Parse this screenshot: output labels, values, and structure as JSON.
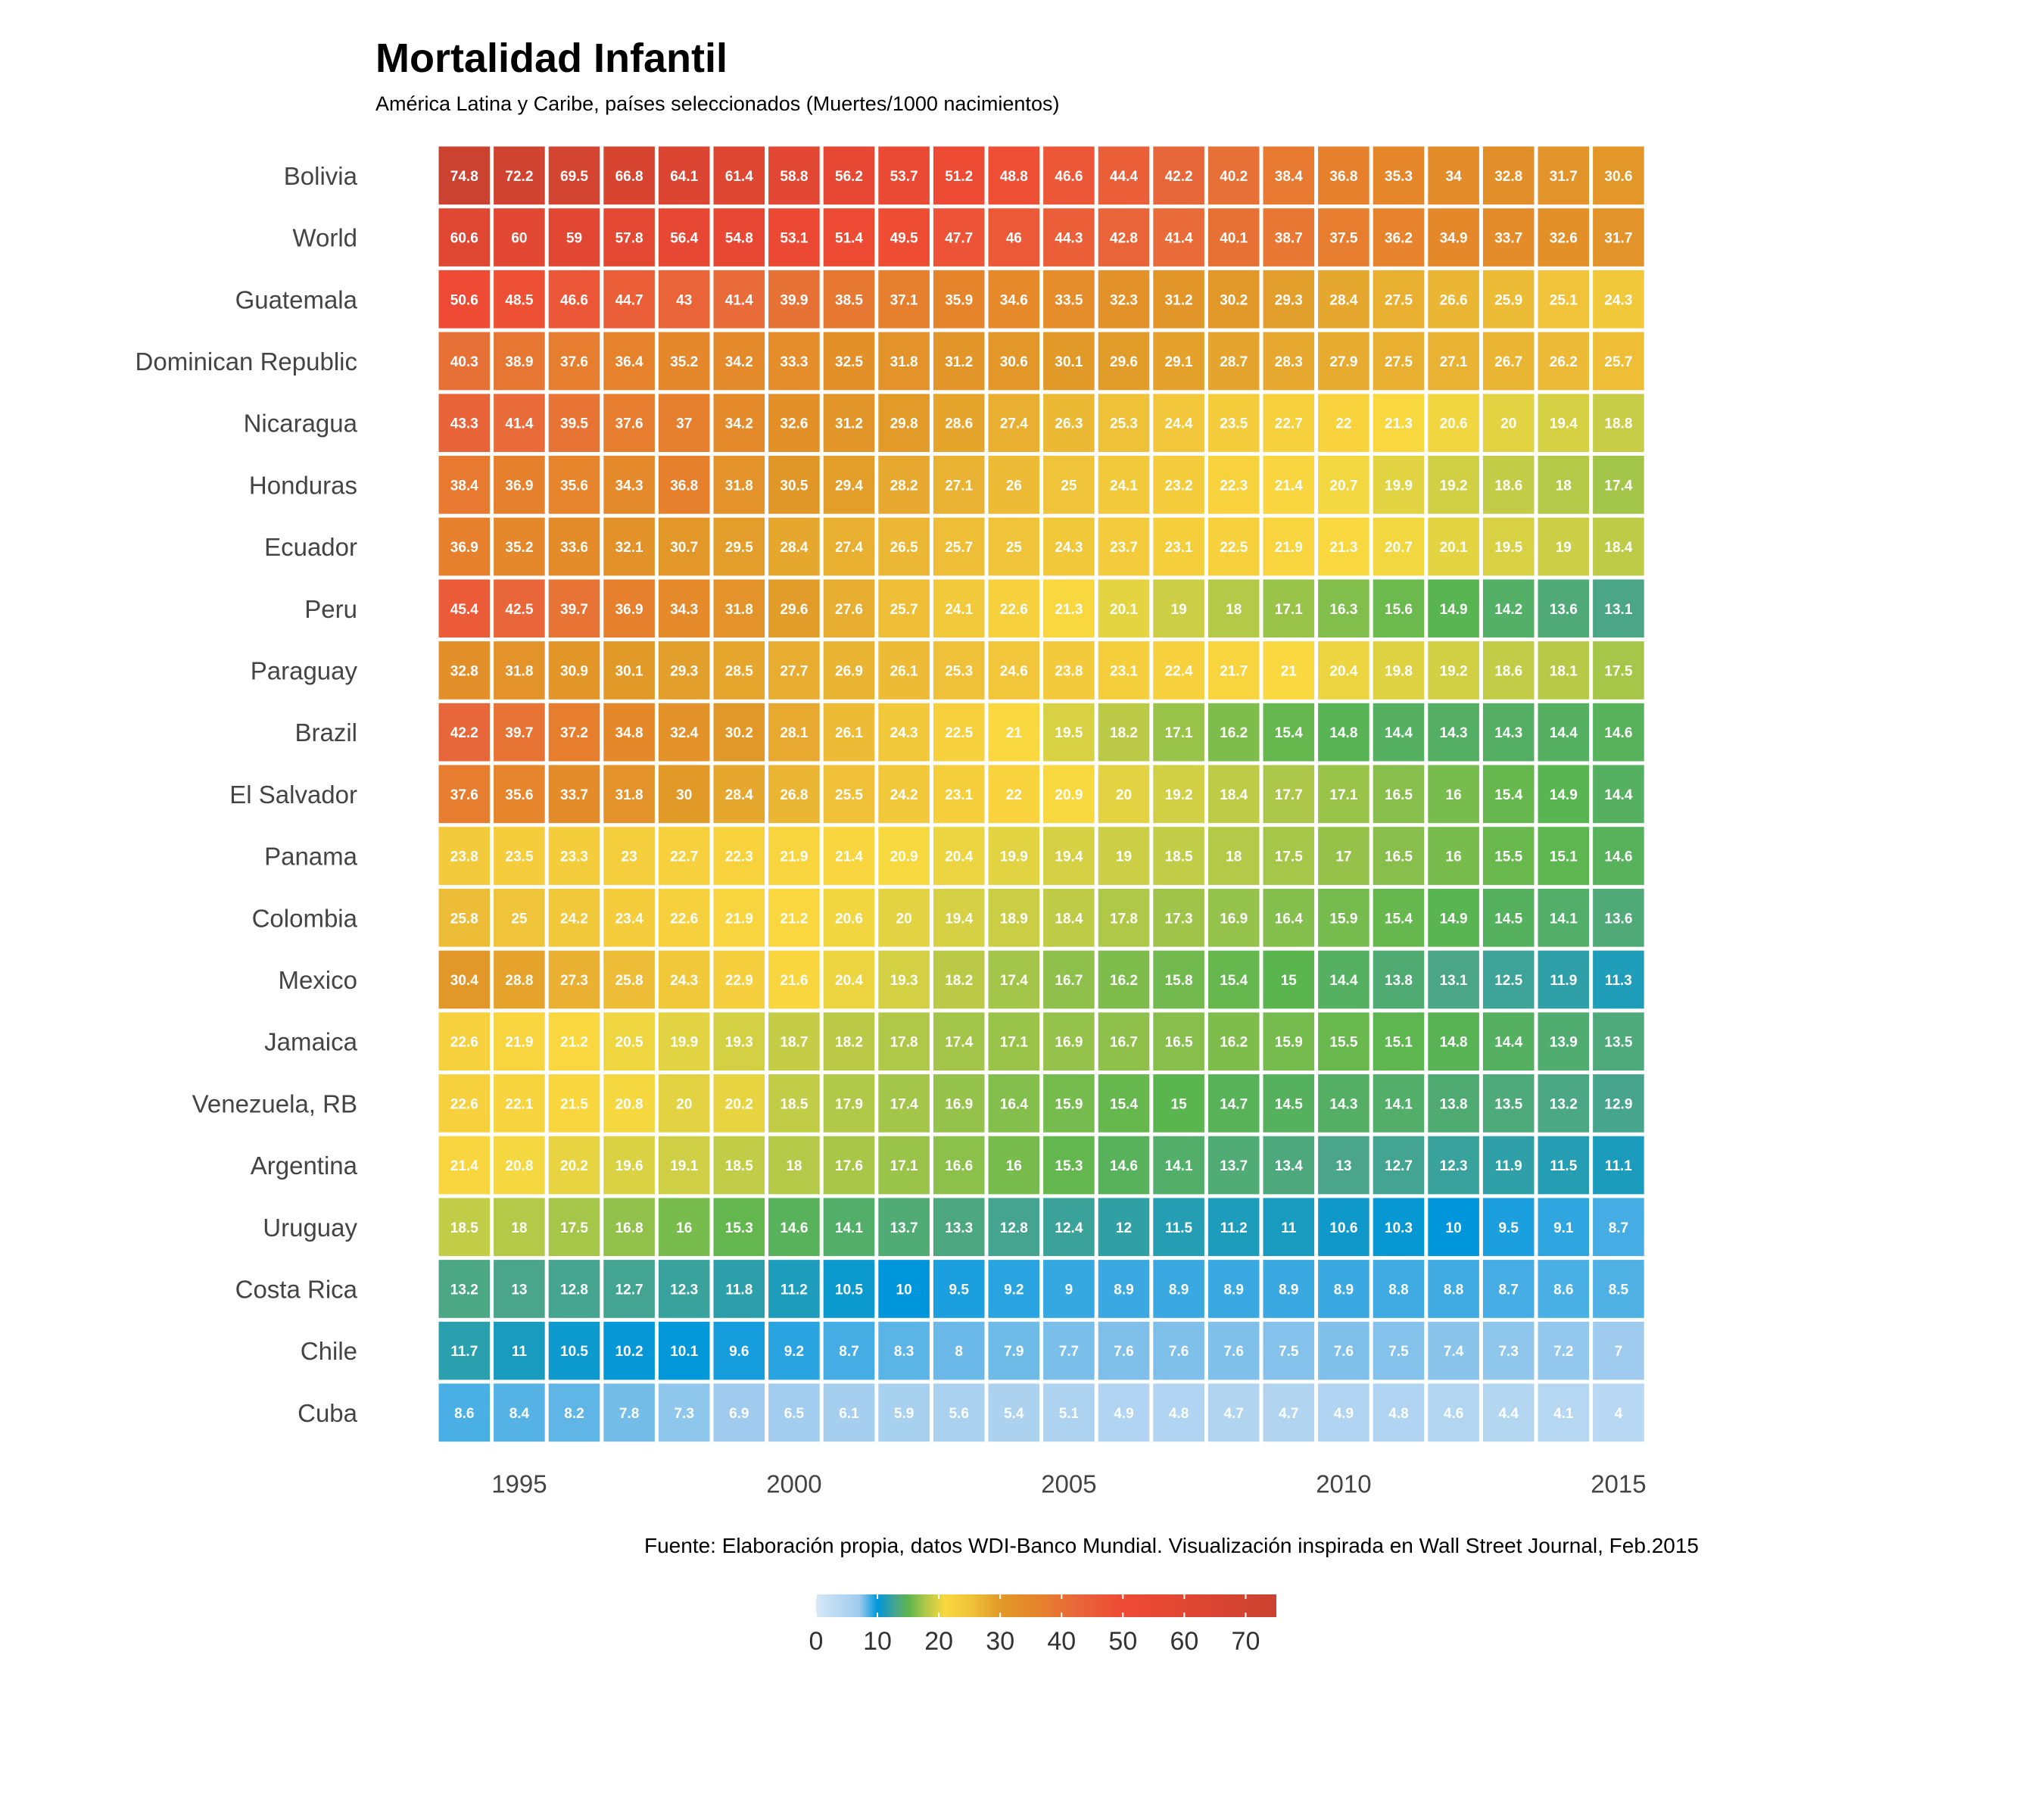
{
  "chart_data": {
    "type": "heatmap",
    "title": "Mortalidad Infantil",
    "subtitle": "América Latina y Caribe, países seleccionados (Muertes/1000 nacimientos)",
    "caption": "Fuente: Elaboración propia, datos WDI-Banco Mundial. Visualización inspirada en Wall Street Journal, Feb.2015",
    "x": [
      1994,
      1995,
      1996,
      1997,
      1998,
      1999,
      2000,
      2001,
      2002,
      2003,
      2004,
      2005,
      2006,
      2007,
      2008,
      2009,
      2010,
      2011,
      2012,
      2013,
      2014,
      2015
    ],
    "x_tick_labels": [
      "1995",
      "2000",
      "2005",
      "2010",
      "2015"
    ],
    "x_tick_values": [
      1995,
      2000,
      2005,
      2010,
      2015
    ],
    "grid": false,
    "legend": {
      "position": "bottom",
      "labels": [
        "0",
        "10",
        "20",
        "30",
        "40",
        "50",
        "60",
        "70"
      ],
      "values": [
        0,
        10,
        20,
        30,
        40,
        50,
        60,
        70
      ],
      "range": [
        0,
        75
      ]
    },
    "color_stops": [
      {
        "v": 0,
        "c": "#d6e8f7"
      },
      {
        "v": 7,
        "c": "#9fcbee"
      },
      {
        "v": 10,
        "c": "#0096db"
      },
      {
        "v": 13,
        "c": "#4aa58a"
      },
      {
        "v": 15,
        "c": "#5ab54f"
      },
      {
        "v": 18,
        "c": "#b5c948"
      },
      {
        "v": 21,
        "c": "#fad83f"
      },
      {
        "v": 25,
        "c": "#f0c43a"
      },
      {
        "v": 30,
        "c": "#e19928"
      },
      {
        "v": 36,
        "c": "#e6842b"
      },
      {
        "v": 42,
        "c": "#e8683a"
      },
      {
        "v": 50,
        "c": "#ef4a34"
      },
      {
        "v": 75,
        "c": "#cb4230"
      }
    ],
    "rows": [
      {
        "name": "Bolivia",
        "values": [
          74.8,
          72.2,
          69.5,
          66.8,
          64.1,
          61.4,
          58.8,
          56.2,
          53.7,
          51.2,
          48.8,
          46.6,
          44.4,
          42.2,
          40.2,
          38.4,
          36.8,
          35.3,
          34,
          32.8,
          31.7,
          30.6
        ]
      },
      {
        "name": "World",
        "values": [
          60.6,
          60,
          59,
          57.8,
          56.4,
          54.8,
          53.1,
          51.4,
          49.5,
          47.7,
          46,
          44.3,
          42.8,
          41.4,
          40.1,
          38.7,
          37.5,
          36.2,
          34.9,
          33.7,
          32.6,
          31.7
        ]
      },
      {
        "name": "Guatemala",
        "values": [
          50.6,
          48.5,
          46.6,
          44.7,
          43,
          41.4,
          39.9,
          38.5,
          37.1,
          35.9,
          34.6,
          33.5,
          32.3,
          31.2,
          30.2,
          29.3,
          28.4,
          27.5,
          26.6,
          25.9,
          25.1,
          24.3
        ]
      },
      {
        "name": "Dominican Republic",
        "values": [
          40.3,
          38.9,
          37.6,
          36.4,
          35.2,
          34.2,
          33.3,
          32.5,
          31.8,
          31.2,
          30.6,
          30.1,
          29.6,
          29.1,
          28.7,
          28.3,
          27.9,
          27.5,
          27.1,
          26.7,
          26.2,
          25.7
        ]
      },
      {
        "name": "Nicaragua",
        "values": [
          43.3,
          41.4,
          39.5,
          37.6,
          37,
          34.2,
          32.6,
          31.2,
          29.8,
          28.6,
          27.4,
          26.3,
          25.3,
          24.4,
          23.5,
          22.7,
          22,
          21.3,
          20.6,
          20,
          19.4,
          18.8
        ]
      },
      {
        "name": "Honduras",
        "values": [
          38.4,
          36.9,
          35.6,
          34.3,
          36.8,
          31.8,
          30.5,
          29.4,
          28.2,
          27.1,
          26,
          25,
          24.1,
          23.2,
          22.3,
          21.4,
          20.7,
          19.9,
          19.2,
          18.6,
          18,
          17.4
        ]
      },
      {
        "name": "Ecuador",
        "values": [
          36.9,
          35.2,
          33.6,
          32.1,
          30.7,
          29.5,
          28.4,
          27.4,
          26.5,
          25.7,
          25,
          24.3,
          23.7,
          23.1,
          22.5,
          21.9,
          21.3,
          20.7,
          20.1,
          19.5,
          19,
          18.4
        ]
      },
      {
        "name": "Peru",
        "values": [
          45.4,
          42.5,
          39.7,
          36.9,
          34.3,
          31.8,
          29.6,
          27.6,
          25.7,
          24.1,
          22.6,
          21.3,
          20.1,
          19,
          18,
          17.1,
          16.3,
          15.6,
          14.9,
          14.2,
          13.6,
          13.1
        ]
      },
      {
        "name": "Paraguay",
        "values": [
          32.8,
          31.8,
          30.9,
          30.1,
          29.3,
          28.5,
          27.7,
          26.9,
          26.1,
          25.3,
          24.6,
          23.8,
          23.1,
          22.4,
          21.7,
          21,
          20.4,
          19.8,
          19.2,
          18.6,
          18.1,
          17.5
        ]
      },
      {
        "name": "Brazil",
        "values": [
          42.2,
          39.7,
          37.2,
          34.8,
          32.4,
          30.2,
          28.1,
          26.1,
          24.3,
          22.5,
          21,
          19.5,
          18.2,
          17.1,
          16.2,
          15.4,
          14.8,
          14.4,
          14.3,
          14.3,
          14.4,
          14.6
        ]
      },
      {
        "name": "El Salvador",
        "values": [
          37.6,
          35.6,
          33.7,
          31.8,
          30,
          28.4,
          26.8,
          25.5,
          24.2,
          23.1,
          22,
          20.9,
          20,
          19.2,
          18.4,
          17.7,
          17.1,
          16.5,
          16,
          15.4,
          14.9,
          14.4
        ]
      },
      {
        "name": "Panama",
        "values": [
          23.8,
          23.5,
          23.3,
          23,
          22.7,
          22.3,
          21.9,
          21.4,
          20.9,
          20.4,
          19.9,
          19.4,
          19,
          18.5,
          18,
          17.5,
          17,
          16.5,
          16,
          15.5,
          15.1,
          14.6
        ]
      },
      {
        "name": "Colombia",
        "values": [
          25.8,
          25,
          24.2,
          23.4,
          22.6,
          21.9,
          21.2,
          20.6,
          20,
          19.4,
          18.9,
          18.4,
          17.8,
          17.3,
          16.9,
          16.4,
          15.9,
          15.4,
          14.9,
          14.5,
          14.1,
          13.6
        ]
      },
      {
        "name": "Mexico",
        "values": [
          30.4,
          28.8,
          27.3,
          25.8,
          24.3,
          22.9,
          21.6,
          20.4,
          19.3,
          18.2,
          17.4,
          16.7,
          16.2,
          15.8,
          15.4,
          15,
          14.4,
          13.8,
          13.1,
          12.5,
          11.9,
          11.3
        ]
      },
      {
        "name": "Jamaica",
        "values": [
          22.6,
          21.9,
          21.2,
          20.5,
          19.9,
          19.3,
          18.7,
          18.2,
          17.8,
          17.4,
          17.1,
          16.9,
          16.7,
          16.5,
          16.2,
          15.9,
          15.5,
          15.1,
          14.8,
          14.4,
          13.9,
          13.5
        ]
      },
      {
        "name": "Venezuela, RB",
        "values": [
          22.6,
          22.1,
          21.5,
          20.8,
          20,
          20.2,
          18.5,
          17.9,
          17.4,
          16.9,
          16.4,
          15.9,
          15.4,
          15,
          14.7,
          14.5,
          14.3,
          14.1,
          13.8,
          13.5,
          13.2,
          12.9
        ]
      },
      {
        "name": "Argentina",
        "values": [
          21.4,
          20.8,
          20.2,
          19.6,
          19.1,
          18.5,
          18,
          17.6,
          17.1,
          16.6,
          16,
          15.3,
          14.6,
          14.1,
          13.7,
          13.4,
          13,
          12.7,
          12.3,
          11.9,
          11.5,
          11.1
        ]
      },
      {
        "name": "Uruguay",
        "values": [
          18.5,
          18,
          17.5,
          16.8,
          16,
          15.3,
          14.6,
          14.1,
          13.7,
          13.3,
          12.8,
          12.4,
          12,
          11.5,
          11.2,
          11,
          10.6,
          10.3,
          10,
          9.5,
          9.1,
          8.7
        ]
      },
      {
        "name": "Costa Rica",
        "values": [
          13.2,
          13,
          12.8,
          12.7,
          12.3,
          11.8,
          11.2,
          10.5,
          10,
          9.5,
          9.2,
          9,
          8.9,
          8.9,
          8.9,
          8.9,
          8.9,
          8.8,
          8.8,
          8.7,
          8.6,
          8.5
        ]
      },
      {
        "name": "Chile",
        "values": [
          11.7,
          11,
          10.5,
          10.2,
          10.1,
          9.6,
          9.2,
          8.7,
          8.3,
          8,
          7.9,
          7.7,
          7.6,
          7.6,
          7.6,
          7.5,
          7.6,
          7.5,
          7.4,
          7.3,
          7.2,
          7
        ]
      },
      {
        "name": "Cuba",
        "values": [
          8.6,
          8.4,
          8.2,
          7.8,
          7.3,
          6.9,
          6.5,
          6.1,
          5.9,
          5.6,
          5.4,
          5.1,
          4.9,
          4.8,
          4.7,
          4.7,
          4.9,
          4.8,
          4.6,
          4.4,
          4.1,
          4
        ]
      }
    ]
  }
}
